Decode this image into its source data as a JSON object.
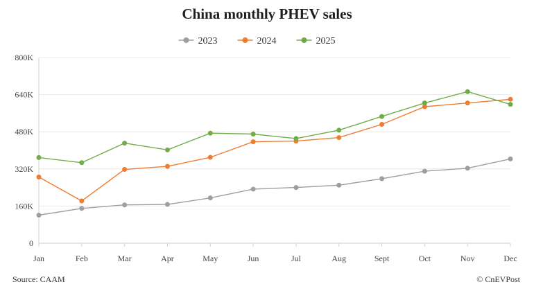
{
  "chart_data": {
    "type": "line",
    "title": "China monthly PHEV sales",
    "xlabel": "",
    "ylabel": "",
    "categories": [
      "Jan",
      "Feb",
      "Mar",
      "Apr",
      "May",
      "Jun",
      "Jul",
      "Aug",
      "Sept",
      "Oct",
      "Nov",
      "Dec"
    ],
    "y_ticks": [
      0,
      160000,
      320000,
      480000,
      640000,
      800000
    ],
    "y_tick_labels": [
      "0",
      "160K",
      "320K",
      "480K",
      "640K",
      "800K"
    ],
    "ylim": [
      0,
      800000
    ],
    "grid": true,
    "legend_position": "top-center",
    "series": [
      {
        "name": "2023",
        "color": "#9e9e9e",
        "values": [
          121000,
          150000,
          165000,
          167000,
          195000,
          233000,
          240000,
          250000,
          278000,
          310000,
          323000,
          363000
        ]
      },
      {
        "name": "2024",
        "color": "#ed7d31",
        "values": [
          285000,
          182000,
          318000,
          331000,
          370000,
          437000,
          440000,
          455000,
          512000,
          588000,
          604000,
          620000
        ]
      },
      {
        "name": "2025",
        "color": "#70ad47",
        "values": [
          369000,
          347000,
          431000,
          402000,
          474000,
          470000,
          451000,
          487000,
          546000,
          604000,
          653000,
          598000
        ]
      }
    ]
  },
  "footer": {
    "source": "Source: CAAM",
    "credit": "© CnEVPost"
  }
}
